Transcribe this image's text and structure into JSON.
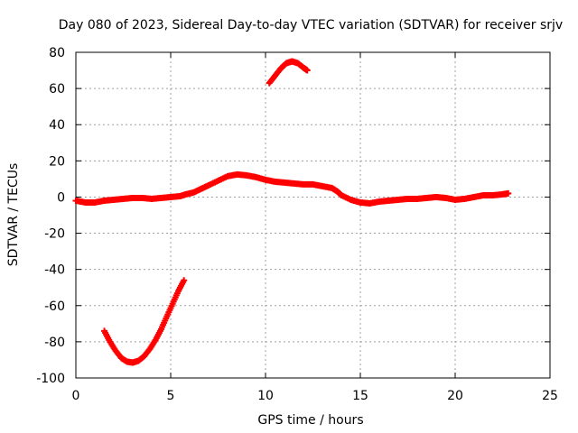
{
  "chart_data": {
    "type": "scatter",
    "title": "Day 080 of 2023, Sidereal Day-to-day VTEC variation (SDTVAR) for receiver srjv",
    "xlabel": "GPS time / hours",
    "ylabel": "SDTVAR / TECUs",
    "xlim": [
      0,
      25
    ],
    "ylim": [
      -100,
      80
    ],
    "xticks": [
      0,
      5,
      10,
      15,
      20,
      25
    ],
    "yticks": [
      -100,
      -80,
      -60,
      -40,
      -20,
      0,
      20,
      40,
      60,
      80
    ],
    "grid": true,
    "marker_color": "#ff0000",
    "series": [
      {
        "name": "main",
        "points": [
          [
            0.0,
            -2
          ],
          [
            0.5,
            -3
          ],
          [
            1.0,
            -3
          ],
          [
            1.5,
            -2
          ],
          [
            2.0,
            -1.5
          ],
          [
            2.5,
            -1
          ],
          [
            3.0,
            -0.5
          ],
          [
            3.5,
            -0.5
          ],
          [
            4.0,
            -1
          ],
          [
            4.5,
            -0.5
          ],
          [
            5.0,
            0
          ],
          [
            5.5,
            0.5
          ],
          [
            5.8,
            1.5
          ],
          [
            6.2,
            2.5
          ],
          [
            6.6,
            4.5
          ],
          [
            7.0,
            6.5
          ],
          [
            7.5,
            9
          ],
          [
            8.0,
            11.5
          ],
          [
            8.5,
            12.5
          ],
          [
            9.0,
            12
          ],
          [
            9.5,
            11
          ],
          [
            10.0,
            9.5
          ],
          [
            10.5,
            8.5
          ],
          [
            11.0,
            8
          ],
          [
            11.5,
            7.5
          ],
          [
            12.0,
            7
          ],
          [
            12.5,
            7
          ],
          [
            13.0,
            6
          ],
          [
            13.5,
            5
          ],
          [
            13.8,
            3
          ],
          [
            14.0,
            1
          ],
          [
            14.5,
            -1.5
          ],
          [
            15.0,
            -3
          ],
          [
            15.5,
            -3.5
          ],
          [
            16.0,
            -2.5
          ],
          [
            16.5,
            -2
          ],
          [
            17.0,
            -1.5
          ],
          [
            17.5,
            -1
          ],
          [
            18.0,
            -1
          ],
          [
            18.5,
            -0.5
          ],
          [
            19.0,
            0
          ],
          [
            19.5,
            -0.5
          ],
          [
            20.0,
            -1.5
          ],
          [
            20.5,
            -1
          ],
          [
            21.0,
            0
          ],
          [
            21.5,
            1
          ],
          [
            22.0,
            1
          ],
          [
            22.5,
            1.5
          ],
          [
            22.8,
            2
          ]
        ]
      },
      {
        "name": "arc-high",
        "points": [
          [
            10.2,
            63
          ],
          [
            10.5,
            67
          ],
          [
            10.8,
            71
          ],
          [
            11.1,
            74
          ],
          [
            11.4,
            75
          ],
          [
            11.7,
            74
          ],
          [
            12.0,
            71.5
          ],
          [
            12.2,
            70
          ]
        ]
      },
      {
        "name": "arc-low",
        "points": [
          [
            1.5,
            -74
          ],
          [
            1.8,
            -80
          ],
          [
            2.1,
            -85
          ],
          [
            2.4,
            -89
          ],
          [
            2.7,
            -91
          ],
          [
            3.0,
            -91.5
          ],
          [
            3.3,
            -90.5
          ],
          [
            3.6,
            -88
          ],
          [
            3.9,
            -84
          ],
          [
            4.2,
            -79
          ],
          [
            4.5,
            -73
          ],
          [
            4.8,
            -66
          ],
          [
            5.1,
            -59
          ],
          [
            5.4,
            -52
          ],
          [
            5.7,
            -46
          ]
        ]
      }
    ]
  }
}
